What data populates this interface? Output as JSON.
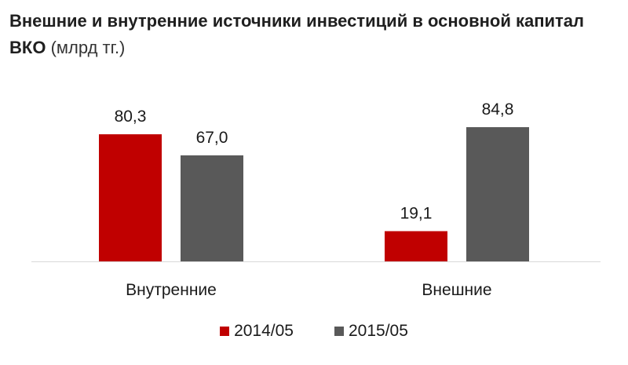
{
  "chart_data": {
    "type": "bar",
    "title": "Внешние и внутренние источники инвестиций в основной капитал ВКО",
    "title_unit": "(млрд тг.)",
    "categories": [
      "Внутренние",
      "Внешние"
    ],
    "series": [
      {
        "name": "2014/05",
        "values": [
          80.3,
          19.1
        ],
        "labels": [
          "80,3",
          "19,1"
        ],
        "color": "#c00000"
      },
      {
        "name": "2015/05",
        "values": [
          67.0,
          84.8
        ],
        "labels": [
          "67,0",
          "84,8"
        ],
        "color": "#595959"
      }
    ],
    "ylim": [
      0,
      100
    ],
    "grid": false,
    "legend_position": "bottom"
  }
}
